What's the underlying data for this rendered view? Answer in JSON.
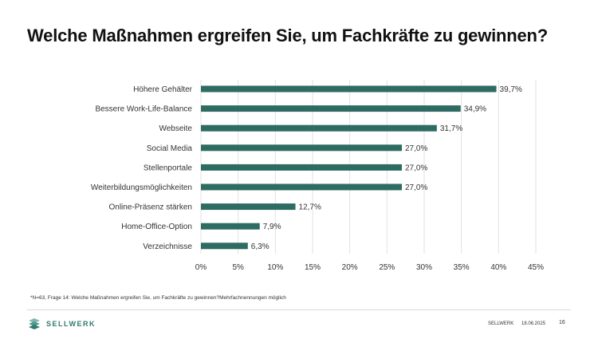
{
  "title": "Welche Maßnahmen ergreifen Sie, um Fachkräfte zu gewinnen?",
  "chart_data": {
    "type": "bar",
    "orientation": "horizontal",
    "categories": [
      "Höhere Gehälter",
      "Bessere Work-Life-Balance",
      "Webseite",
      "Social Media",
      "Stellenportale",
      "Weiterbildungsmöglichkeiten",
      "Online-Präsenz stärken",
      "Home-Office-Option",
      "Verzeichnisse"
    ],
    "values": [
      39.7,
      34.9,
      31.7,
      27.0,
      27.0,
      27.0,
      12.7,
      7.9,
      6.3
    ],
    "value_labels": [
      "39,7%",
      "34,9%",
      "31,7%",
      "27,0%",
      "27,0%",
      "27,0%",
      "12,7%",
      "7,9%",
      "6,3%"
    ],
    "xlim": [
      0,
      45
    ],
    "xticks": [
      0,
      5,
      10,
      15,
      20,
      25,
      30,
      35,
      40,
      45
    ],
    "xtick_labels": [
      "0%",
      "5%",
      "10%",
      "15%",
      "20%",
      "25%",
      "30%",
      "35%",
      "40%",
      "45%"
    ],
    "grid": "vertical",
    "bar_color": "#2e6b62"
  },
  "footnote": "*N=63, Frage 14: Welche Maßnahmen ergreifen Sie, um Fachkräfte zu gewinnen?Mehrfachnennungen möglich",
  "footer": {
    "logo_text": "SELLWERK",
    "brand": "SELLWERK",
    "date": "18.06.2025",
    "page": "16"
  },
  "colors": {
    "accent": "#2f7a6e"
  }
}
